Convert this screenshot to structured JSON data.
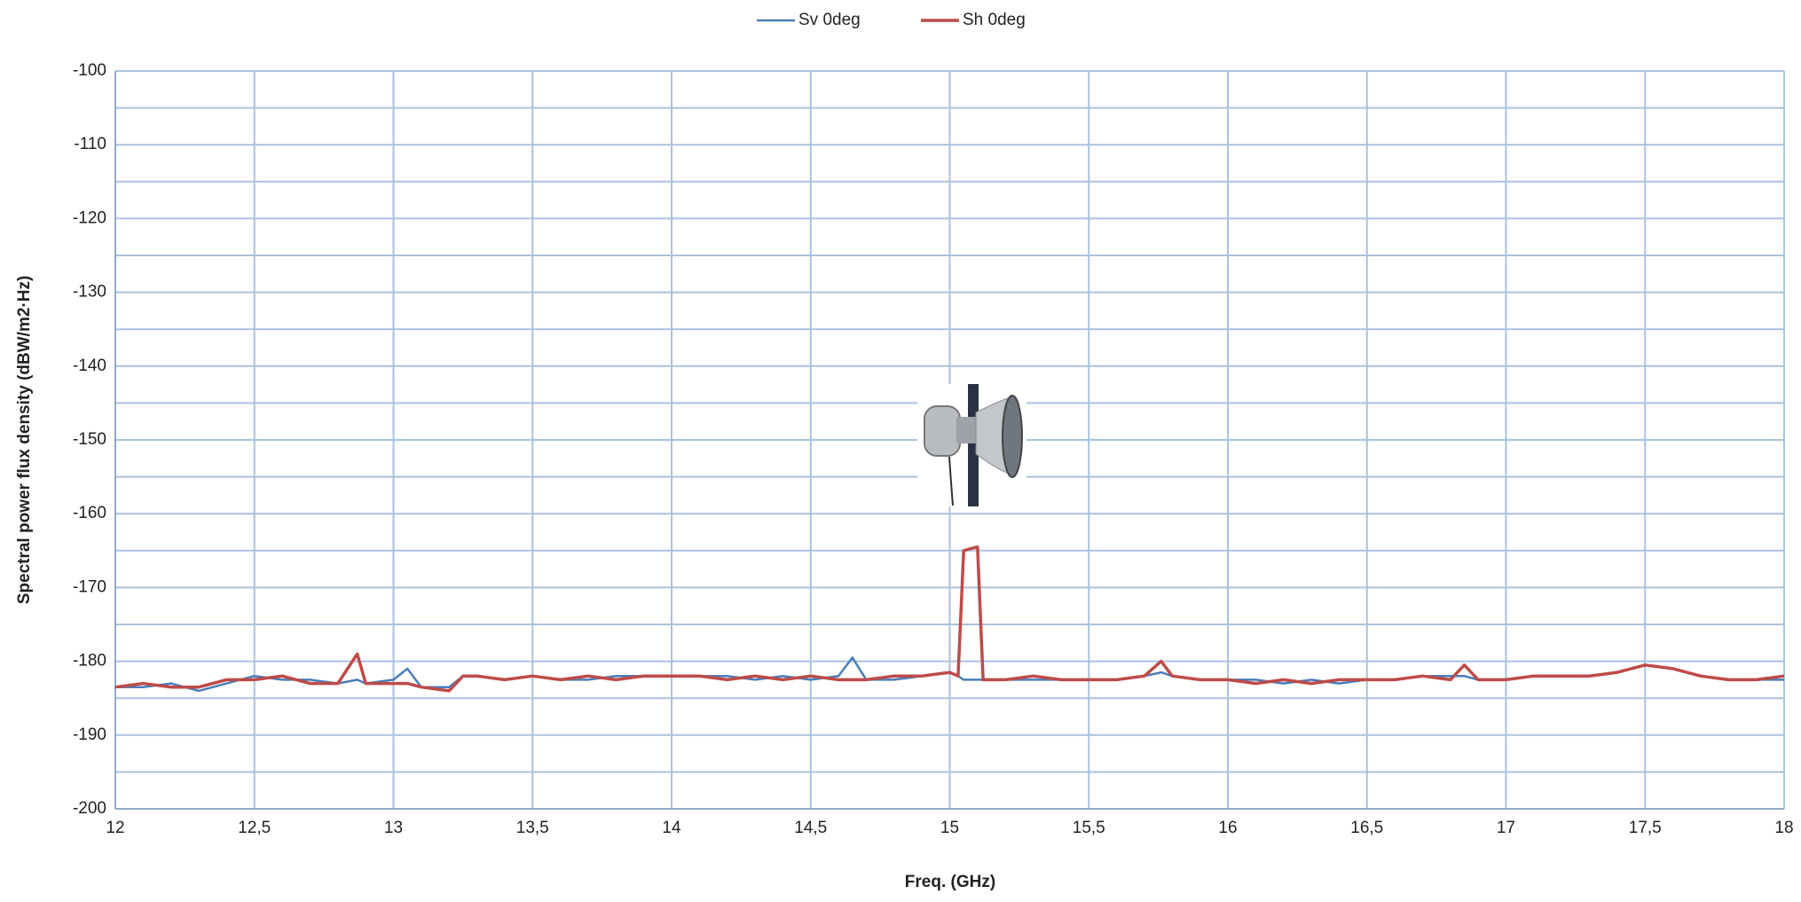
{
  "chart_data": {
    "type": "line",
    "x_label": "Freq. (GHz)",
    "y_label": "Spectral power flux density (dBW/m2·Hz)",
    "xlim": [
      12,
      18
    ],
    "xticks": [
      12,
      {
        "value": 12.5,
        "label": "12,5"
      },
      13,
      {
        "value": 13.5,
        "label": "13,5"
      },
      14,
      {
        "value": 14.5,
        "label": "14,5"
      },
      15,
      {
        "value": 15.5,
        "label": "15,5"
      },
      16,
      {
        "value": 16.5,
        "label": "16,5"
      },
      17,
      {
        "value": 17.5,
        "label": "17,5"
      },
      18
    ],
    "ylim": [
      -200,
      -100
    ],
    "yticks": [
      -100,
      -110,
      -120,
      -130,
      -140,
      -150,
      -160,
      -170,
      -180,
      -190,
      -200
    ],
    "grid": true,
    "legend": "top",
    "x": [
      12,
      12.1,
      12.2,
      12.3,
      12.4,
      12.5,
      12.6,
      12.7,
      12.8,
      12.87,
      12.9,
      13.0,
      13.05,
      13.1,
      13.2,
      13.25,
      13.3,
      13.4,
      13.5,
      13.6,
      13.7,
      13.8,
      13.9,
      14.0,
      14.1,
      14.2,
      14.3,
      14.4,
      14.5,
      14.6,
      14.65,
      14.7,
      14.8,
      14.9,
      15.0,
      15.03,
      15.05,
      15.1,
      15.12,
      15.2,
      15.3,
      15.4,
      15.5,
      15.6,
      15.7,
      15.76,
      15.8,
      15.9,
      16.0,
      16.1,
      16.2,
      16.3,
      16.4,
      16.5,
      16.6,
      16.7,
      16.8,
      16.85,
      16.9,
      17.0,
      17.1,
      17.2,
      17.3,
      17.4,
      17.5,
      17.6,
      17.7,
      17.8,
      17.9,
      18.0
    ],
    "series": [
      {
        "name": "Sv 0deg",
        "color": "#4a7ebb",
        "values": [
          -183.5,
          -183.5,
          -183,
          -184,
          -183,
          -182,
          -182.5,
          -182.5,
          -183,
          -182.5,
          -183,
          -182.5,
          -181,
          -183.5,
          -183.5,
          -182,
          -182,
          -182.5,
          -182,
          -182.5,
          -182.5,
          -182,
          -182,
          -182,
          -182,
          -182,
          -182.5,
          -182,
          -182.5,
          -182,
          -179.5,
          -182.5,
          -182.5,
          -182,
          -181.5,
          -182,
          -182.5,
          -182.5,
          -182.5,
          -182.5,
          -182.5,
          -182.5,
          -182.5,
          -182.5,
          -182,
          -181.5,
          -182,
          -182.5,
          -182.5,
          -182.5,
          -183,
          -182.5,
          -183,
          -182.5,
          -182.5,
          -182,
          -182,
          -182,
          -182.5,
          -182.5,
          -182,
          -182,
          -182,
          -181.5,
          -180.5,
          -181,
          -182,
          -182.5,
          -182.5,
          -182.5
        ]
      },
      {
        "name": "Sh 0deg",
        "color": "#be4b48",
        "values": [
          -183.5,
          -183,
          -183.5,
          -183.5,
          -182.5,
          -182.5,
          -182,
          -183,
          -183,
          -179,
          -183,
          -183,
          -183,
          -183.5,
          -184,
          -182,
          -182,
          -182.5,
          -182,
          -182.5,
          -182,
          -182.5,
          -182,
          -182,
          -182,
          -182.5,
          -182,
          -182.5,
          -182,
          -182.5,
          -182.5,
          -182.5,
          -182,
          -182,
          -181.5,
          -182,
          -165,
          -164.5,
          -182.5,
          -182.5,
          -182,
          -182.5,
          -182.5,
          -182.5,
          -182,
          -180,
          -182,
          -182.5,
          -182.5,
          -183,
          -182.5,
          -183,
          -182.5,
          -182.5,
          -182.5,
          -182,
          -182.5,
          -180.5,
          -182.5,
          -182.5,
          -182,
          -182,
          -182,
          -181.5,
          -180.5,
          -181,
          -182,
          -182.5,
          -182.5,
          -182
        ]
      }
    ]
  }
}
